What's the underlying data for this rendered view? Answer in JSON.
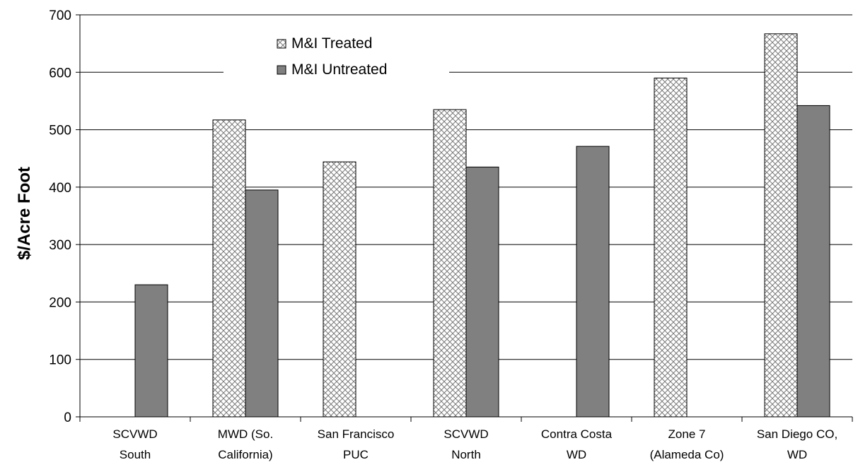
{
  "chart_data": {
    "type": "bar",
    "title": "",
    "xlabel": "",
    "ylabel": "$/Acre Foot",
    "ylim": [
      0,
      700
    ],
    "yticks": [
      0,
      100,
      200,
      300,
      400,
      500,
      600,
      700
    ],
    "grid": true,
    "legend_position": "top-center",
    "categories": [
      [
        "SCVWD",
        "South"
      ],
      [
        "MWD (So.",
        "California)"
      ],
      [
        "San Francisco",
        "PUC"
      ],
      [
        "SCVWD",
        "North"
      ],
      [
        "Contra Costa",
        "WD"
      ],
      [
        "Zone 7",
        "(Alameda Co)"
      ],
      [
        "San Diego CO,",
        "WD"
      ]
    ],
    "series": [
      {
        "name": "M&I Treated",
        "pattern": "crosshatch",
        "color": "#ffffff",
        "values": [
          null,
          517,
          444,
          535,
          null,
          590,
          667
        ]
      },
      {
        "name": "M&I Untreated",
        "pattern": "solid",
        "color": "#808080",
        "values": [
          230,
          395,
          null,
          435,
          471,
          null,
          542
        ]
      }
    ]
  }
}
